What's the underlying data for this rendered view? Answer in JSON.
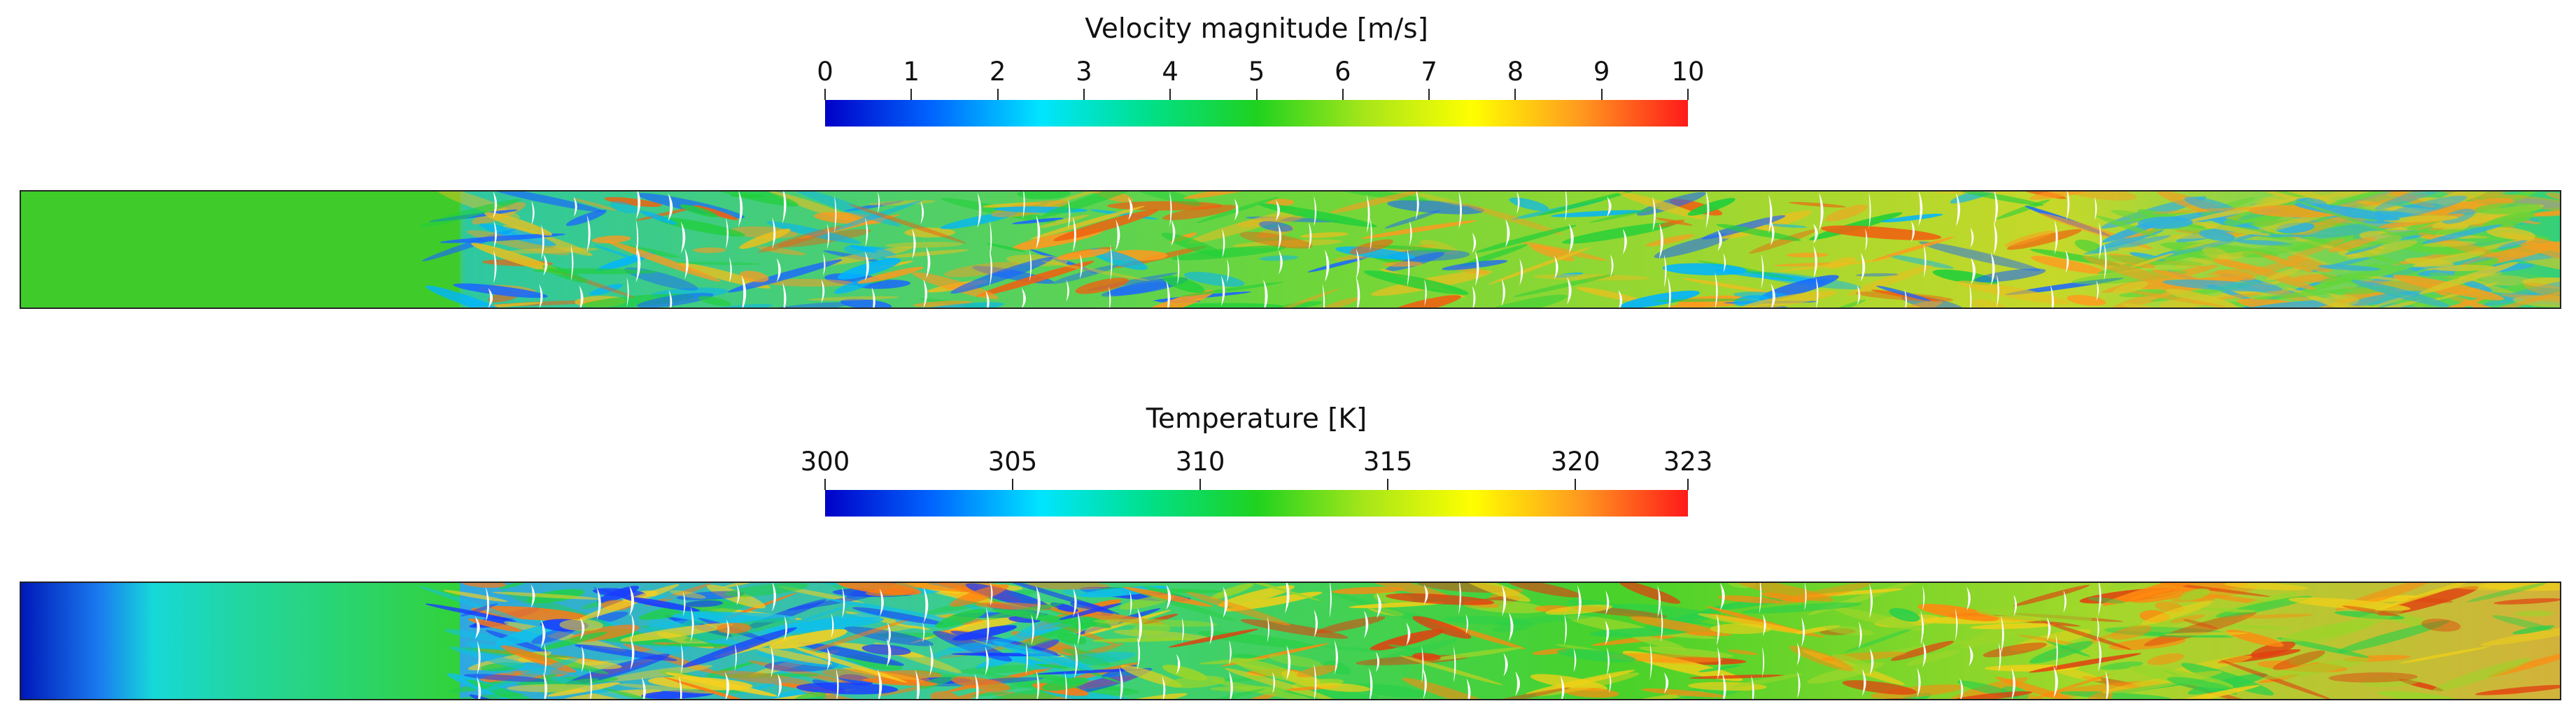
{
  "velocity_colorbar": {
    "title": "Velocity magnitude [m/s]",
    "ticks": [
      "0",
      "1",
      "2",
      "3",
      "4",
      "5",
      "6",
      "7",
      "8",
      "9",
      "10"
    ],
    "range": [
      0,
      10
    ]
  },
  "temperature_colorbar": {
    "title": "Temperature [K]",
    "ticks": [
      "300",
      "305",
      "310",
      "315",
      "320",
      "323"
    ],
    "tick_values": [
      300,
      305,
      310,
      315,
      320,
      323
    ],
    "range": [
      300,
      323
    ]
  },
  "colormap": {
    "stops": [
      "#0000c8",
      "#0066ff",
      "#00e5ff",
      "#00e08a",
      "#1fd21f",
      "#a6e61a",
      "#ffff00",
      "#ff9a1f",
      "#ff1a1a"
    ]
  }
}
